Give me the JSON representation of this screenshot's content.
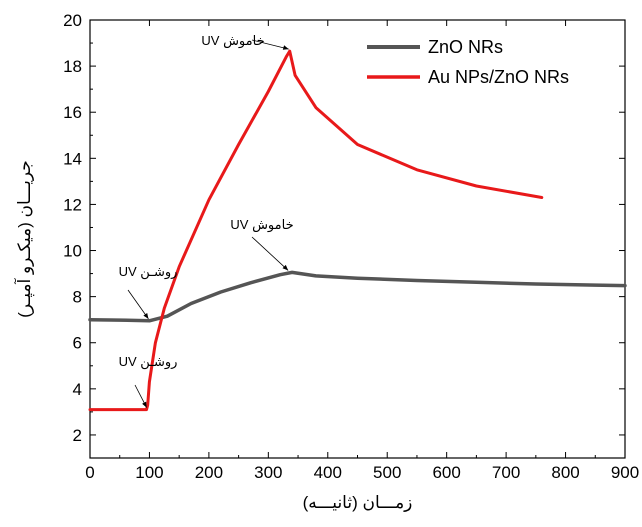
{
  "chart_data": {
    "type": "line",
    "xlabel": "زمـــان (ثانیـــه)",
    "ylabel": "جریـــان (میکـرو آمپـر)",
    "xlim": [
      0,
      900
    ],
    "ylim": [
      1,
      20
    ],
    "x_ticks": [
      0,
      100,
      200,
      300,
      400,
      500,
      600,
      700,
      800,
      900
    ],
    "y_ticks": [
      2,
      4,
      6,
      8,
      10,
      12,
      14,
      16,
      18,
      20
    ],
    "grid": false,
    "legend_position": "top-right",
    "series": [
      {
        "name": "ZnO NRs",
        "color": "#555555",
        "x": [
          0,
          50,
          100,
          130,
          170,
          220,
          270,
          320,
          340,
          380,
          450,
          550,
          650,
          750,
          850,
          900
        ],
        "y": [
          7.0,
          6.98,
          6.95,
          7.15,
          7.7,
          8.2,
          8.6,
          8.95,
          9.05,
          8.9,
          8.8,
          8.7,
          8.62,
          8.55,
          8.5,
          8.48
        ]
      },
      {
        "name": "Au NPs/ZnO NRs",
        "color": "#e8191a",
        "x": [
          0,
          50,
          95,
          97,
          100,
          110,
          125,
          150,
          200,
          250,
          300,
          330,
          336,
          345,
          380,
          450,
          550,
          650,
          760
        ],
        "y": [
          3.1,
          3.1,
          3.1,
          3.3,
          4.3,
          6.0,
          7.5,
          9.3,
          12.2,
          14.6,
          16.9,
          18.4,
          18.65,
          17.6,
          16.2,
          14.6,
          13.5,
          12.8,
          12.3
        ]
      }
    ],
    "annotations": [
      {
        "id": "uv-on-red",
        "text": "UV روشـن",
        "x": 97,
        "y": 3.1
      },
      {
        "id": "uv-on-gray",
        "text": "UV روشـن",
        "x": 100,
        "y": 6.95
      },
      {
        "id": "uv-off-gray",
        "text": "UV خاموش",
        "x": 335,
        "y": 9.05
      },
      {
        "id": "uv-off-red",
        "text": "UV خاموش",
        "x": 336,
        "y": 18.65
      }
    ]
  }
}
